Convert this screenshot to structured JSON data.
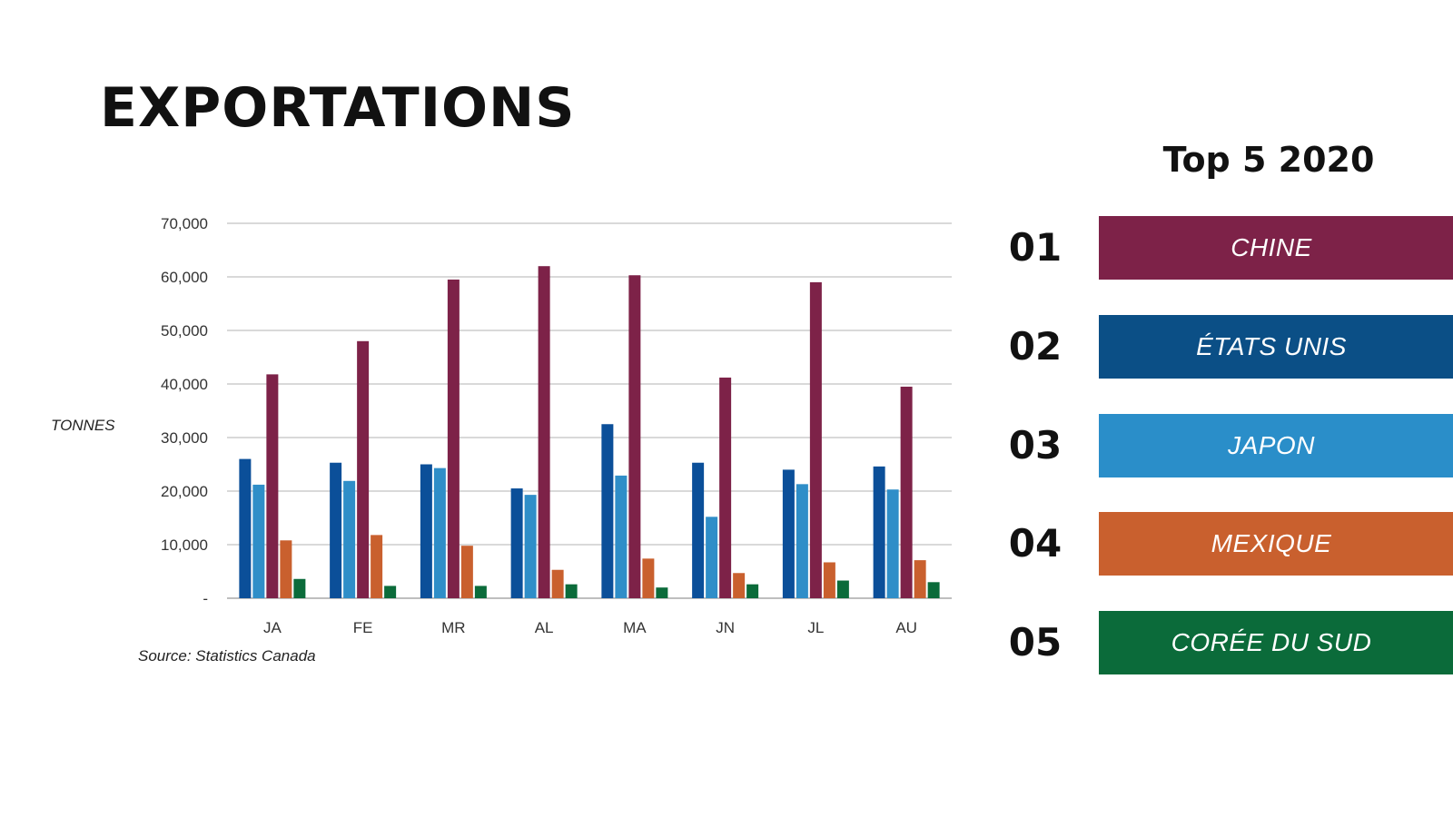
{
  "title": "EXPORTATIONS",
  "top5": {
    "title": "Top 5 2020",
    "items": [
      {
        "rank": "01",
        "country": "CHINE",
        "color": "#7d2248"
      },
      {
        "rank": "02",
        "country": "ÉTATS UNIS",
        "color": "#0b4f86"
      },
      {
        "rank": "03",
        "country": "JAPON",
        "color": "#2a8ec9"
      },
      {
        "rank": "04",
        "country": "MEXIQUE",
        "color": "#c9602e"
      },
      {
        "rank": "05",
        "country": "CORÉE DU SUD",
        "color": "#0b6b3a"
      }
    ]
  },
  "chart_data": {
    "type": "bar",
    "ylabel": "TONNES",
    "source": "Source: Statistics Canada",
    "categories": [
      "JA",
      "FE",
      "MR",
      "AL",
      "MA",
      "JN",
      "JL",
      "AU"
    ],
    "yticks": [
      "-",
      "10,000",
      "20,000",
      "30,000",
      "40,000",
      "50,000",
      "60,000",
      "70,000"
    ],
    "ylim": [
      0,
      70000
    ],
    "grid": true,
    "series": [
      {
        "color": "#0b4f99",
        "values": [
          26000,
          25300,
          25000,
          20500,
          32500,
          25300,
          24000,
          24600
        ]
      },
      {
        "color": "#2f8ec8",
        "values": [
          21200,
          21900,
          24300,
          19300,
          22900,
          15200,
          21300,
          20300
        ]
      },
      {
        "color": "#7d2248",
        "values": [
          41800,
          48000,
          59500,
          62000,
          60300,
          41200,
          59000,
          39500
        ]
      },
      {
        "color": "#c9602e",
        "values": [
          10800,
          11800,
          9800,
          5300,
          7400,
          4700,
          6700,
          7100
        ]
      },
      {
        "color": "#0b6b3a",
        "values": [
          3600,
          2300,
          2300,
          2600,
          2000,
          2600,
          3300,
          3000
        ]
      }
    ]
  }
}
